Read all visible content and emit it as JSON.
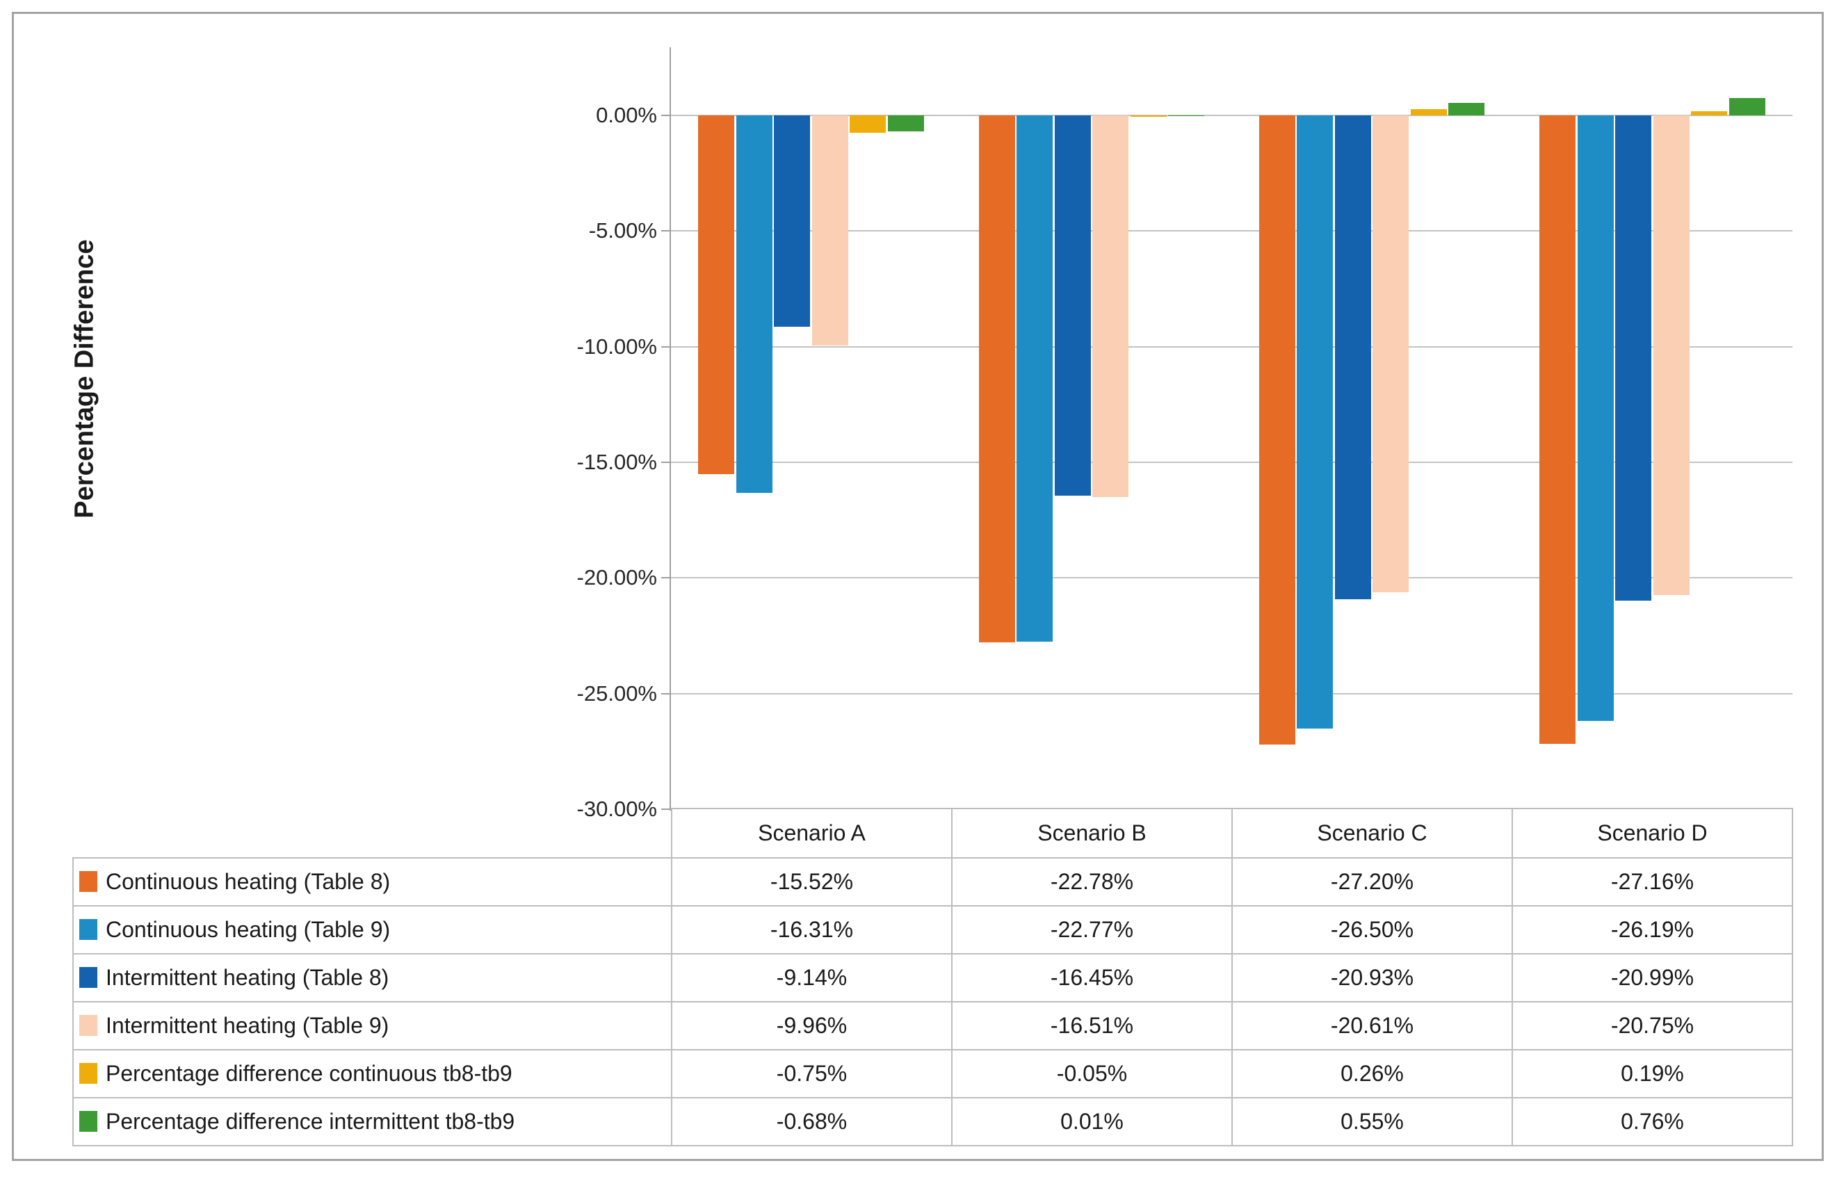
{
  "chart_data": {
    "type": "bar",
    "title": "",
    "ylabel": "Percentage Difference",
    "xlabel": "",
    "categories": [
      "Scenario A",
      "Scenario B",
      "Scenario C",
      "Scenario D"
    ],
    "series": [
      {
        "name": "Continuous heating (Table 8)",
        "color": "#E66C26",
        "values": [
          -15.52,
          -22.78,
          -27.2,
          -27.16
        ],
        "display": [
          "-15.52%",
          "-22.78%",
          "-27.20%",
          "-27.16%"
        ]
      },
      {
        "name": "Continuous heating (Table 9)",
        "color": "#1E8DC6",
        "values": [
          -16.31,
          -22.77,
          -26.5,
          -26.19
        ],
        "display": [
          "-16.31%",
          "-22.77%",
          "-26.50%",
          "-26.19%"
        ]
      },
      {
        "name": "Intermittent heating (Table 8)",
        "color": "#1461AE",
        "values": [
          -9.14,
          -16.45,
          -20.93,
          -20.99
        ],
        "display": [
          "-9.14%",
          "-16.45%",
          "-20.93%",
          "-20.99%"
        ]
      },
      {
        "name": "Intermittent heating (Table 9)",
        "color": "#FBCFB3",
        "values": [
          -9.96,
          -16.51,
          -20.61,
          -20.75
        ],
        "display": [
          "-9.96%",
          "-16.51%",
          "-20.61%",
          "-20.75%"
        ]
      },
      {
        "name": "Percentage difference continuous tb8-tb9",
        "color": "#EFAD0C",
        "values": [
          -0.75,
          -0.05,
          0.26,
          0.19
        ],
        "display": [
          "-0.75%",
          "-0.05%",
          "0.26%",
          "0.19%"
        ]
      },
      {
        "name": "Percentage difference intermittent tb8-tb9",
        "color": "#3C9B35",
        "values": [
          -0.68,
          0.01,
          0.55,
          0.76
        ],
        "display": [
          "-0.68%",
          "0.01%",
          "0.55%",
          "0.76%"
        ]
      }
    ],
    "y_axis": {
      "min": -30,
      "max": 2.95,
      "major_unit": 5,
      "tick_values": [
        0,
        -5,
        -10,
        -15,
        -20,
        -25,
        -30
      ],
      "tick_labels": [
        "0.00%",
        "-5.00%",
        "-10.00%",
        "-15.00%",
        "-20.00%",
        "-25.00%",
        "-30.00%"
      ]
    },
    "grid": true,
    "legend_position": "data-table-left-column"
  },
  "colors": {
    "gridline": "#C3C3C3",
    "axis_line": "#9F9F9F",
    "table_border": "#BDBDBD",
    "outer_border": "#A4A4A4",
    "text": "#262626"
  }
}
